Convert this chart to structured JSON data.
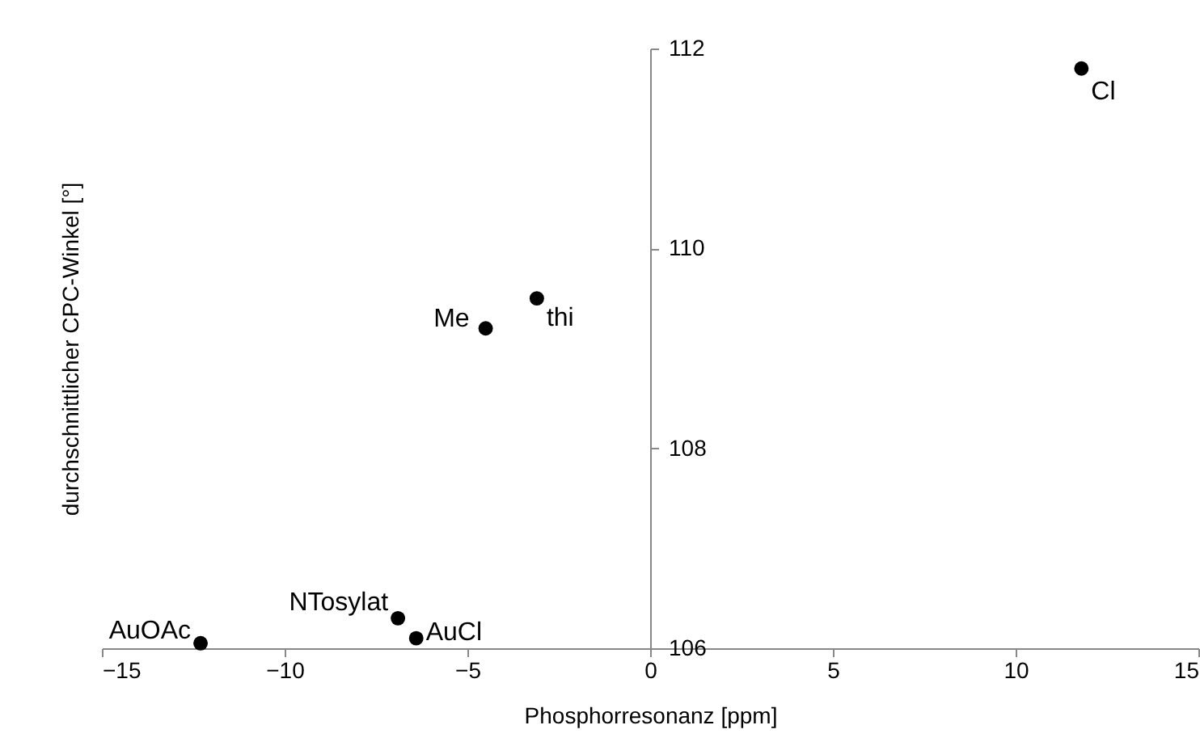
{
  "chart_data": {
    "type": "scatter",
    "xlabel": "Phosphorresonanz [ppm]",
    "ylabel": "durchschnittlicher CPC-Winkel [°]",
    "x": [
      11.8,
      -3.1,
      -4.5,
      -6.9,
      -6.4,
      -12.3
    ],
    "series": [
      {
        "color": "#000000",
        "values": [
          111.8,
          109.5,
          109.2,
          106.3,
          106.1,
          106.05
        ]
      }
    ],
    "xlim": [
      -15,
      15
    ],
    "xticks": [
      -15,
      -10,
      -5,
      0,
      5,
      10,
      15
    ],
    "ylim": [
      106,
      112
    ],
    "yticks": [
      106,
      108,
      110,
      112
    ],
    "marker": "circle",
    "grid": false,
    "annotations": [
      {
        "text": "Cl",
        "x": 11.8,
        "y": 111.8
      },
      {
        "text": "thi",
        "x": -3.1,
        "y": 109.5
      },
      {
        "text": "Me",
        "x": -4.5,
        "y": 109.2
      },
      {
        "text": "NTosylat",
        "x": -6.9,
        "y": 106.3
      },
      {
        "text": "AuCl",
        "x": -6.4,
        "y": 106.1
      },
      {
        "text": "AuOAc",
        "x": -12.3,
        "y": 106.05
      }
    ]
  }
}
